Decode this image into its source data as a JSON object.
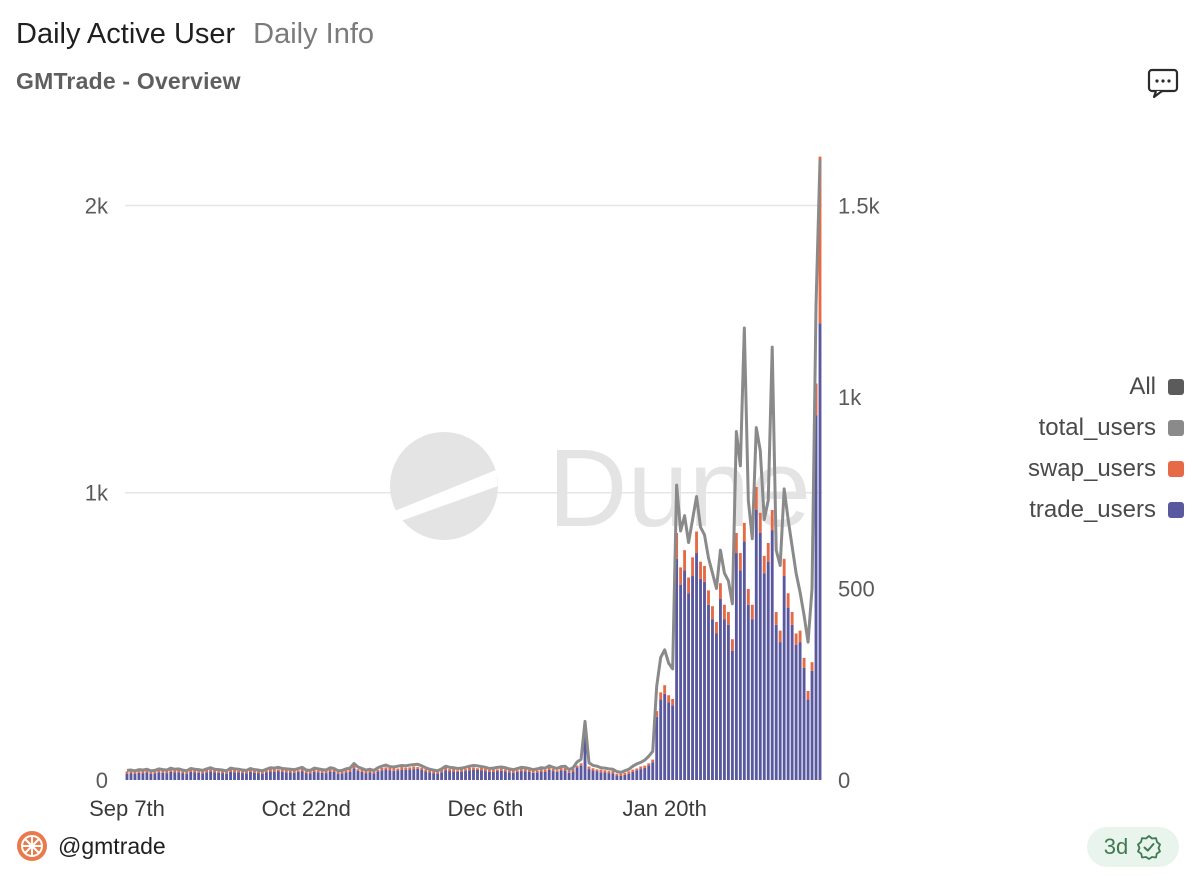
{
  "tabs": [
    {
      "label": "Daily Active User",
      "active": true
    },
    {
      "label": "Daily Info",
      "active": false
    }
  ],
  "subtitle": "GMTrade - Overview",
  "icons": {
    "comment": "comment-icon",
    "avatar": "gmtrade-logo-icon",
    "verified": "verified-check-icon"
  },
  "footer": {
    "handle": "@gmtrade",
    "badge": "3d"
  },
  "colors": {
    "all": "#5b5b5b",
    "total_users": "#8a8a8a",
    "swap_users": "#e56a45",
    "trade_users": "#5a59a0",
    "grid": "#e6e6e6",
    "badge_green": "#3f7a52"
  },
  "chart_data": {
    "type": "bar",
    "watermark": "Dune",
    "legend_position": "right",
    "grid": true,
    "left_axis": {
      "ylim": [
        0,
        2200
      ],
      "ticks": [
        0,
        1000,
        2000
      ],
      "tick_labels": [
        "0",
        "1k",
        "2k"
      ]
    },
    "right_axis": {
      "ylim": [
        0,
        1650
      ],
      "ticks": [
        0,
        500,
        1000,
        1500
      ],
      "tick_labels": [
        "0",
        "500",
        "1k",
        "1.5k"
      ]
    },
    "x_tick_labels": [
      "Sep 7th",
      "Oct 22nd",
      "Dec 6th",
      "Jan 20th"
    ],
    "x_tick_index": [
      0,
      45,
      90,
      135
    ],
    "legend": [
      {
        "label": "All",
        "color_key": "all"
      },
      {
        "label": "total_users",
        "color_key": "total_users"
      },
      {
        "label": "swap_users",
        "color_key": "swap_users"
      },
      {
        "label": "trade_users",
        "color_key": "trade_users"
      }
    ],
    "stack_axis": "left",
    "line_axis": "right",
    "series": [
      {
        "name": "trade_users",
        "values": [
          22,
          24,
          21,
          25,
          24,
          26,
          22,
          23,
          27,
          25,
          24,
          29,
          26,
          27,
          24,
          22,
          28,
          26,
          25,
          23,
          27,
          30,
          26,
          25,
          24,
          22,
          29,
          27,
          26,
          24,
          23,
          28,
          25,
          24,
          22,
          26,
          30,
          29,
          31,
          28,
          27,
          26,
          25,
          28,
          31,
          24,
          23,
          29,
          27,
          25,
          24,
          30,
          28,
          22,
          23,
          27,
          29,
          41,
          32,
          28,
          24,
          26,
          23,
          30,
          34,
          37,
          33,
          32,
          34,
          36,
          35,
          37,
          38,
          39,
          35,
          30,
          26,
          24,
          22,
          27,
          34,
          31,
          30,
          28,
          29,
          31,
          34,
          36,
          35,
          33,
          31,
          28,
          29,
          31,
          32,
          30,
          27,
          25,
          28,
          31,
          30,
          28,
          25,
          27,
          30,
          29,
          35,
          31,
          28,
          33,
          34,
          25,
          30,
          44,
          50,
          165,
          38,
          33,
          31,
          27,
          26,
          24,
          23,
          16,
          14,
          18,
          21,
          28,
          34,
          38,
          42,
          51,
          62,
          220,
          280,
          300,
          270,
          260,
          770,
          680,
          730,
          650,
          710,
          790,
          700,
          690,
          610,
          560,
          510,
          630,
          560,
          540,
          450,
          790,
          730,
          830,
          610,
          560,
          940,
          860,
          720,
          760,
          870,
          540,
          480,
          710,
          600,
          540,
          470,
          480,
          390,
          280,
          380,
          1270,
          1590
        ]
      },
      {
        "name": "swap_users",
        "values": [
          8,
          7,
          9,
          6,
          8,
          7,
          9,
          8,
          6,
          9,
          8,
          7,
          9,
          6,
          8,
          7,
          9,
          8,
          6,
          9,
          8,
          7,
          9,
          6,
          8,
          7,
          9,
          8,
          6,
          9,
          8,
          7,
          9,
          6,
          8,
          7,
          9,
          8,
          6,
          9,
          8,
          7,
          9,
          6,
          8,
          7,
          9,
          8,
          6,
          9,
          8,
          7,
          9,
          6,
          8,
          7,
          9,
          8,
          6,
          9,
          8,
          7,
          9,
          6,
          8,
          7,
          9,
          8,
          6,
          9,
          8,
          7,
          9,
          6,
          8,
          7,
          9,
          8,
          6,
          9,
          8,
          7,
          9,
          6,
          8,
          7,
          9,
          8,
          6,
          9,
          8,
          7,
          9,
          6,
          8,
          7,
          9,
          8,
          6,
          9,
          8,
          7,
          9,
          6,
          8,
          7,
          9,
          8,
          6,
          9,
          8,
          7,
          9,
          6,
          8,
          20,
          9,
          8,
          6,
          9,
          8,
          7,
          9,
          6,
          8,
          7,
          9,
          8,
          6,
          9,
          8,
          7,
          9,
          20,
          25,
          30,
          25,
          22,
          90,
          60,
          70,
          55,
          65,
          75,
          60,
          55,
          50,
          45,
          40,
          55,
          50,
          45,
          40,
          70,
          60,
          65,
          55,
          50,
          80,
          70,
          60,
          65,
          70,
          45,
          40,
          60,
          50,
          45,
          40,
          40,
          35,
          30,
          30,
          110,
          580
        ]
      },
      {
        "name": "total_users",
        "values": [
          25,
          26,
          24,
          27,
          26,
          28,
          24,
          25,
          29,
          27,
          26,
          31,
          28,
          29,
          26,
          24,
          30,
          28,
          27,
          25,
          29,
          32,
          28,
          27,
          26,
          24,
          31,
          29,
          28,
          26,
          25,
          30,
          27,
          26,
          24,
          28,
          32,
          31,
          33,
          30,
          29,
          28,
          27,
          30,
          33,
          26,
          25,
          31,
          29,
          27,
          26,
          32,
          30,
          24,
          25,
          29,
          31,
          43,
          34,
          30,
          26,
          28,
          25,
          32,
          36,
          39,
          35,
          34,
          36,
          38,
          37,
          39,
          40,
          41,
          37,
          32,
          28,
          26,
          24,
          29,
          36,
          33,
          32,
          30,
          31,
          33,
          36,
          38,
          37,
          35,
          33,
          30,
          31,
          33,
          34,
          32,
          29,
          27,
          30,
          33,
          32,
          30,
          27,
          29,
          32,
          31,
          37,
          33,
          30,
          35,
          36,
          27,
          32,
          47,
          54,
          153,
          45,
          38,
          36,
          32,
          31,
          29,
          28,
          22,
          20,
          24,
          28,
          36,
          42,
          46,
          52,
          62,
          75,
          245,
          320,
          340,
          305,
          290,
          770,
          650,
          690,
          620,
          680,
          740,
          660,
          640,
          580,
          540,
          500,
          600,
          540,
          520,
          460,
          910,
          820,
          1180,
          730,
          630,
          920,
          860,
          680,
          730,
          1130,
          600,
          560,
          760,
          680,
          610,
          540,
          490,
          430,
          360,
          500,
          1240,
          1620
        ]
      }
    ]
  }
}
